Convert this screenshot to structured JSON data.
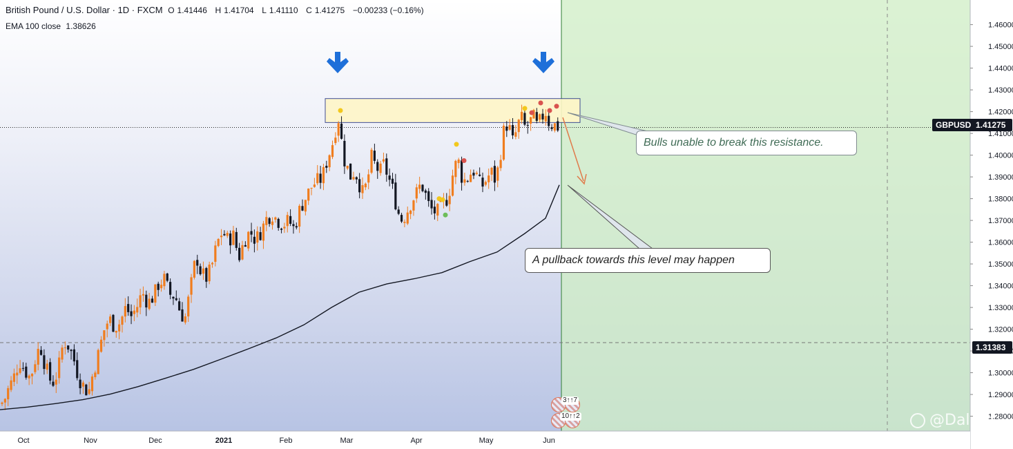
{
  "header": {
    "title": "British Pound / U.S. Dollar · 1D · FXCM",
    "ohlc": {
      "open_label": "O",
      "open": "1.41446",
      "high_label": "H",
      "high": "1.41704",
      "low_label": "L",
      "low": "1.41110",
      "close_label": "C",
      "close": "1.41275",
      "change": "−0.00233 (−0.16%)"
    },
    "indicator_name": "EMA 100 close",
    "indicator_value": "1.38626"
  },
  "price_tags": {
    "symbol": "GBPUSD",
    "last_price": "1.41275",
    "horizontal_level": "1.31383"
  },
  "annotations": {
    "resistance_note": "Bulls unable to break this resistance.",
    "pullback_note": "A pullback towards this level may happen"
  },
  "events": {
    "top_label": "3↑↑7",
    "bottom_label": "10↑↑2"
  },
  "watermark": "@Dalma",
  "colors": {
    "bull_candle": "#f07d1e",
    "bear_candle": "#131722",
    "ema_line": "#131722",
    "arrow_blue": "#1e6fd9",
    "resistance_zone_fill": "#fff6c8",
    "resistance_zone_border": "#2b3a8a",
    "projection_zone": "#cfeec4",
    "pullback_arrow": "#e07a4a",
    "dot_yellow": "#f2c81d",
    "dot_red": "#d9534f",
    "dot_green": "#6dbd5a"
  },
  "chart_data": {
    "type": "candlestick",
    "y_ticks": [
      "1.46000",
      "1.45000",
      "1.44000",
      "1.43000",
      "1.42000",
      "1.41000",
      "1.40000",
      "1.39000",
      "1.38000",
      "1.37000",
      "1.36000",
      "1.35000",
      "1.34000",
      "1.33000",
      "1.32000",
      "1.31000",
      "1.30000",
      "1.29000",
      "1.28000"
    ],
    "ylim": [
      1.277,
      1.4675
    ],
    "x_tick_labels": [
      "Oct",
      "Nov",
      "Dec",
      "2021",
      "Feb",
      "Mar",
      "Apr",
      "May",
      "Jun"
    ],
    "close_path": [
      [
        0,
        1.2855
      ],
      [
        6,
        1.2872
      ],
      [
        12,
        1.2925
      ],
      [
        20,
        1.298
      ],
      [
        28,
        1.3055
      ],
      [
        36,
        1.301
      ],
      [
        44,
        1.2975
      ],
      [
        50,
        1.305
      ],
      [
        58,
        1.313
      ],
      [
        64,
        1.305
      ],
      [
        72,
        1.297
      ],
      [
        78,
        1.2955
      ],
      [
        84,
        1.301
      ],
      [
        92,
        1.3145
      ],
      [
        100,
        1.312
      ],
      [
        108,
        1.305
      ],
      [
        114,
        1.2975
      ],
      [
        122,
        1.2935
      ],
      [
        128,
        1.2905
      ],
      [
        134,
        1.299
      ],
      [
        142,
        1.308
      ],
      [
        150,
        1.319
      ],
      [
        158,
        1.325
      ],
      [
        166,
        1.321
      ],
      [
        174,
        1.323
      ],
      [
        182,
        1.33
      ],
      [
        190,
        1.326
      ],
      [
        198,
        1.33
      ],
      [
        206,
        1.337
      ],
      [
        214,
        1.332
      ],
      [
        222,
        1.335
      ],
      [
        230,
        1.341
      ],
      [
        238,
        1.343
      ],
      [
        246,
        1.336
      ],
      [
        254,
        1.335
      ],
      [
        262,
        1.327
      ],
      [
        268,
        1.325
      ],
      [
        276,
        1.339
      ],
      [
        284,
        1.354
      ],
      [
        290,
        1.347
      ],
      [
        298,
        1.343
      ],
      [
        306,
        1.348
      ],
      [
        314,
        1.359
      ],
      [
        322,
        1.365
      ],
      [
        330,
        1.361
      ],
      [
        338,
        1.363
      ],
      [
        346,
        1.353
      ],
      [
        354,
        1.361
      ],
      [
        362,
        1.365
      ],
      [
        370,
        1.361
      ],
      [
        378,
        1.365
      ],
      [
        386,
        1.371
      ],
      [
        394,
        1.373
      ],
      [
        402,
        1.37
      ],
      [
        410,
        1.368
      ],
      [
        418,
        1.37
      ],
      [
        426,
        1.366
      ],
      [
        434,
        1.375
      ],
      [
        442,
        1.38
      ],
      [
        450,
        1.385
      ],
      [
        458,
        1.388
      ],
      [
        466,
        1.389
      ],
      [
        474,
        1.398
      ],
      [
        482,
        1.406
      ],
      [
        488,
        1.415
      ],
      [
        492,
        1.418
      ],
      [
        496,
        1.4
      ],
      [
        502,
        1.395
      ],
      [
        508,
        1.39
      ],
      [
        514,
        1.393
      ],
      [
        520,
        1.387
      ],
      [
        526,
        1.382
      ],
      [
        532,
        1.388
      ],
      [
        538,
        1.399
      ],
      [
        544,
        1.395
      ],
      [
        550,
        1.392
      ],
      [
        556,
        1.396
      ],
      [
        562,
        1.39
      ],
      [
        568,
        1.385
      ],
      [
        574,
        1.377
      ],
      [
        580,
        1.37
      ],
      [
        586,
        1.372
      ],
      [
        592,
        1.376
      ],
      [
        598,
        1.38
      ],
      [
        604,
        1.383
      ],
      [
        610,
        1.387
      ],
      [
        616,
        1.382
      ],
      [
        622,
        1.376
      ],
      [
        628,
        1.374
      ],
      [
        634,
        1.374
      ],
      [
        640,
        1.377
      ],
      [
        646,
        1.379
      ],
      [
        652,
        1.385
      ],
      [
        658,
        1.395
      ],
      [
        664,
        1.397
      ],
      [
        670,
        1.388
      ],
      [
        676,
        1.389
      ],
      [
        682,
        1.392
      ],
      [
        688,
        1.393
      ],
      [
        694,
        1.387
      ],
      [
        700,
        1.386
      ],
      [
        706,
        1.39
      ],
      [
        712,
        1.392
      ],
      [
        718,
        1.388
      ],
      [
        724,
        1.399
      ],
      [
        730,
        1.412
      ],
      [
        736,
        1.415
      ],
      [
        742,
        1.406
      ],
      [
        748,
        1.411
      ],
      [
        754,
        1.418
      ],
      [
        760,
        1.413
      ],
      [
        766,
        1.414
      ],
      [
        772,
        1.418
      ],
      [
        778,
        1.413
      ],
      [
        784,
        1.417
      ],
      [
        790,
        1.42
      ],
      [
        796,
        1.414
      ],
      [
        802,
        1.414
      ],
      [
        808,
        1.413
      ],
      [
        812,
        1.4128
      ]
    ],
    "ema_100": [
      [
        0,
        1.283
      ],
      [
        40,
        1.2842
      ],
      [
        80,
        1.2858
      ],
      [
        120,
        1.2876
      ],
      [
        160,
        1.2902
      ],
      [
        200,
        1.2936
      ],
      [
        240,
        1.2975
      ],
      [
        280,
        1.3015
      ],
      [
        320,
        1.3062
      ],
      [
        360,
        1.311
      ],
      [
        400,
        1.316
      ],
      [
        440,
        1.322
      ],
      [
        480,
        1.33
      ],
      [
        520,
        1.337
      ],
      [
        560,
        1.3408
      ],
      [
        600,
        1.3432
      ],
      [
        640,
        1.346
      ],
      [
        680,
        1.351
      ],
      [
        720,
        1.3555
      ],
      [
        760,
        1.364
      ],
      [
        790,
        1.371
      ],
      [
        810,
        1.3863
      ]
    ],
    "resistance_zone": {
      "top": 1.426,
      "bottom": 1.415
    },
    "horizontal_level": 1.31383,
    "last_price": 1.41275
  }
}
